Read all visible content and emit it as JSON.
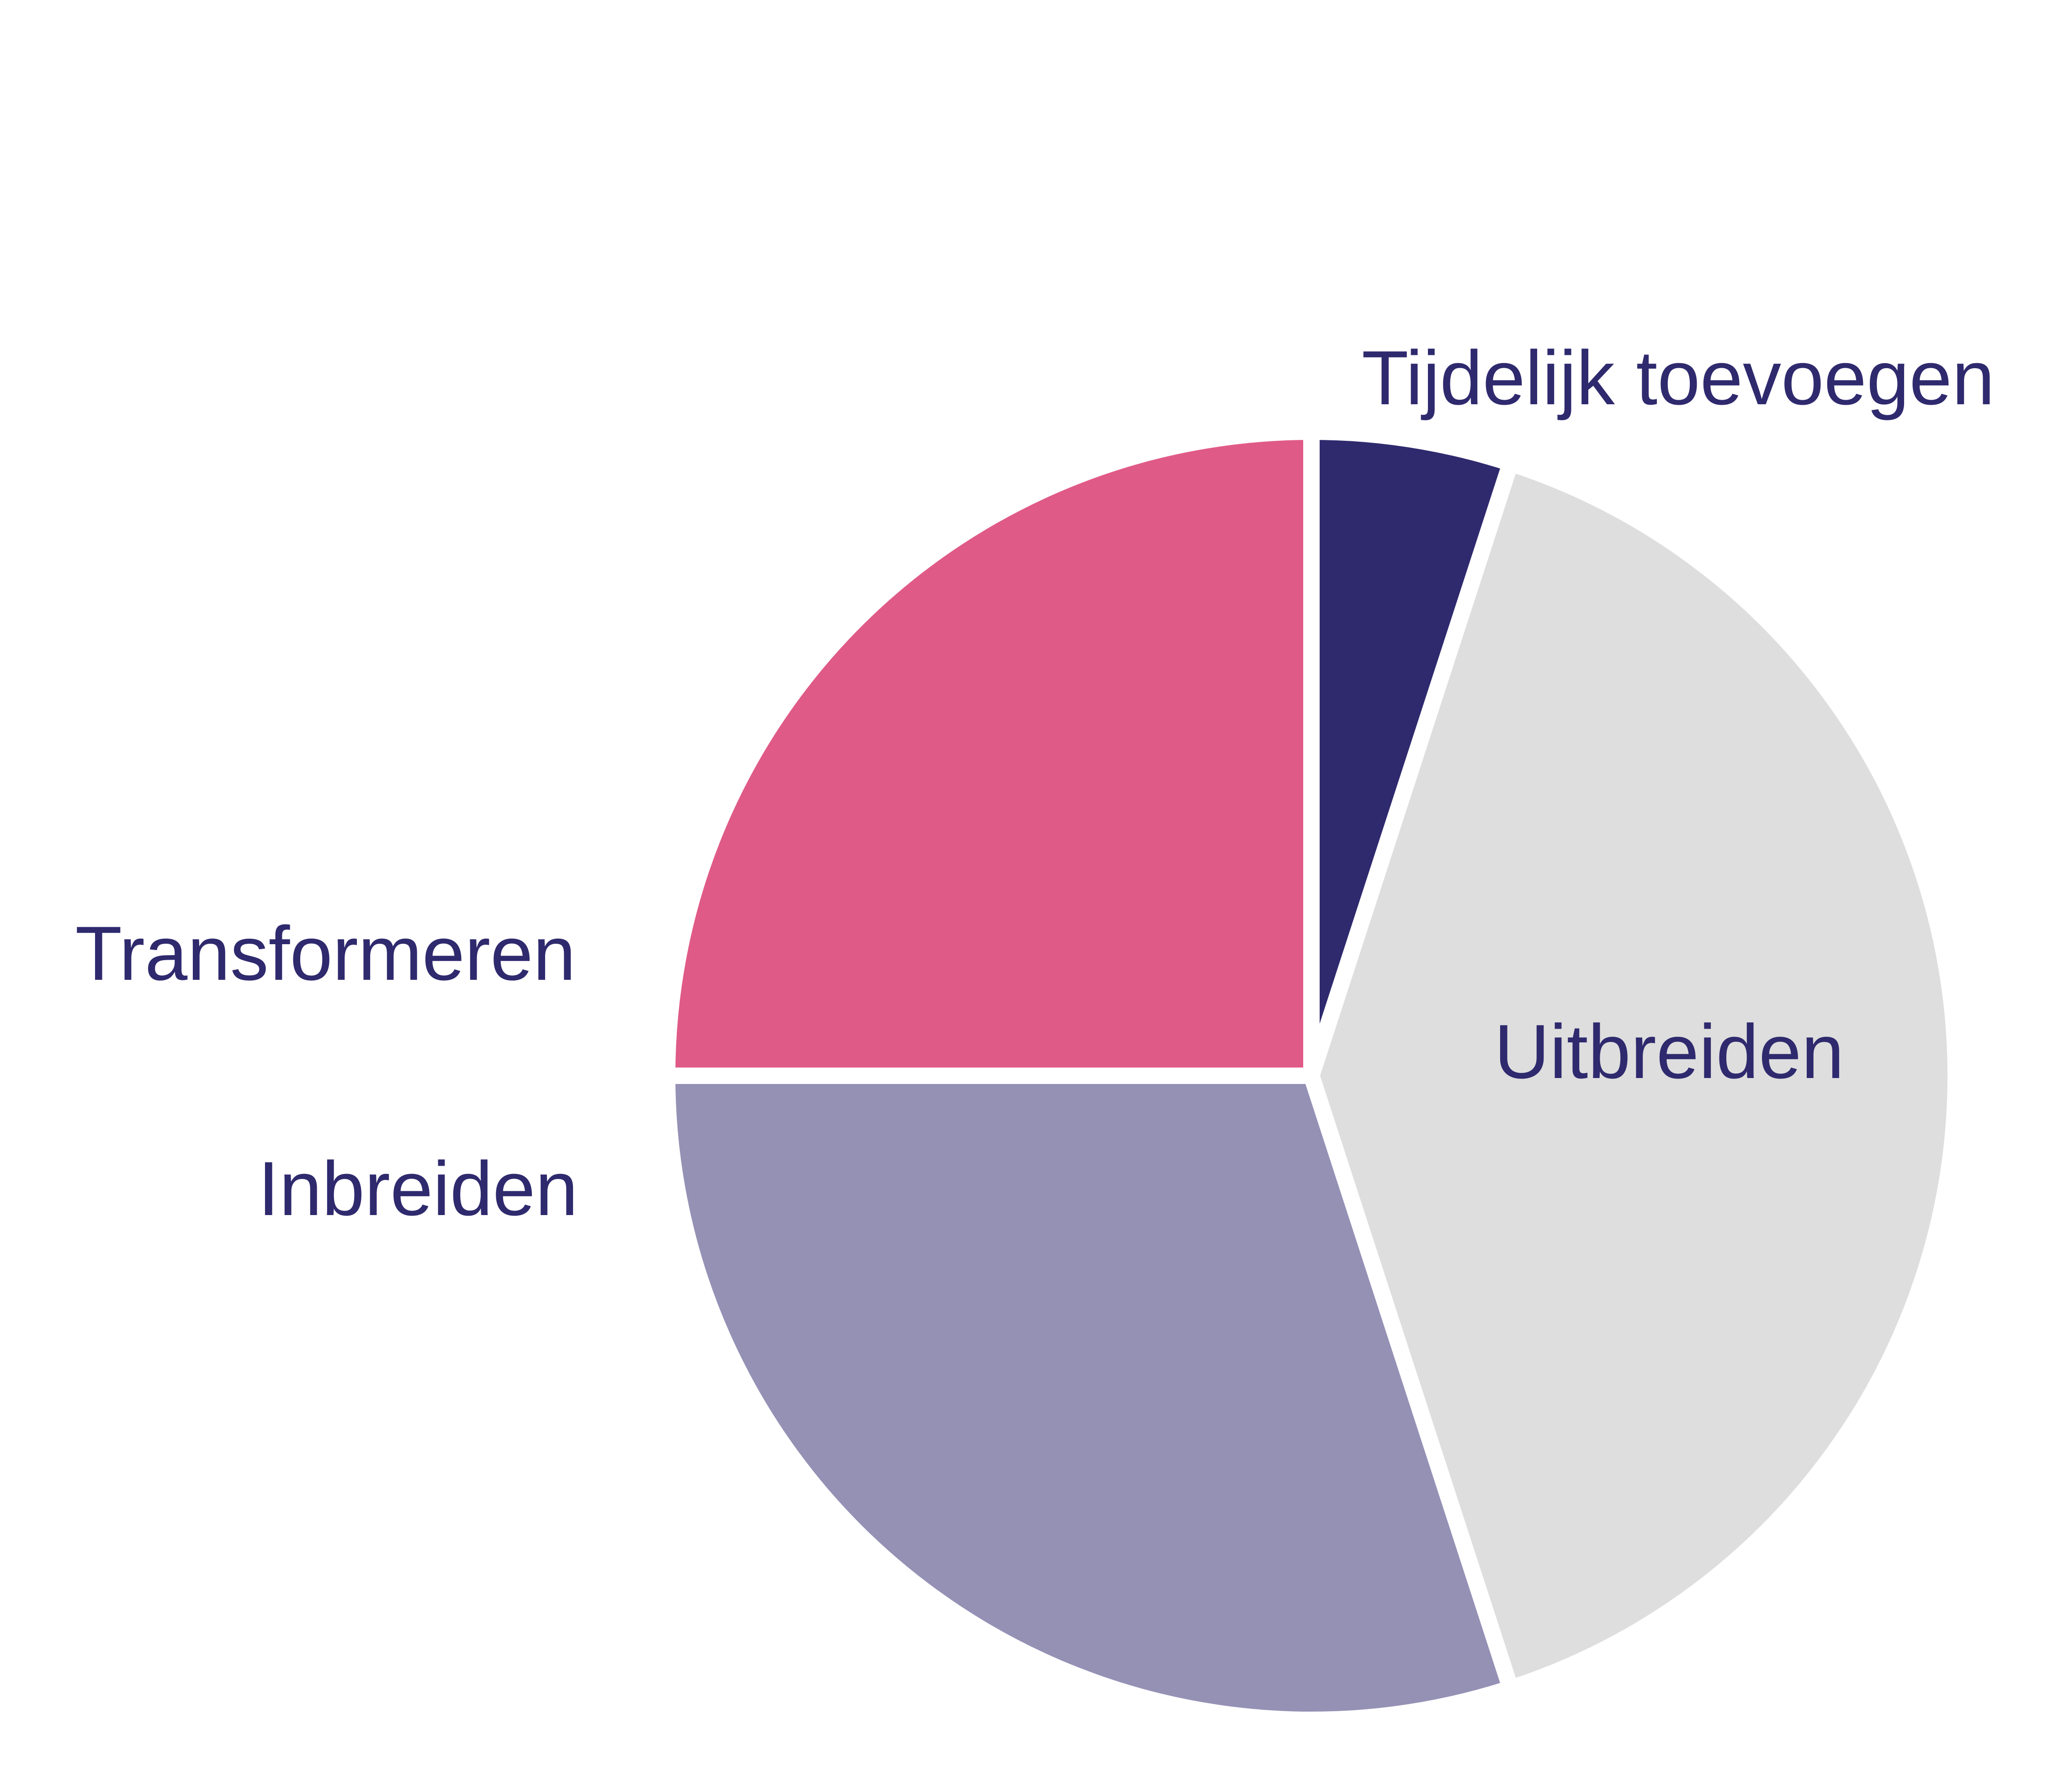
{
  "chart_data": {
    "type": "pie",
    "title": "",
    "legend": "none",
    "start_angle_deg": 0,
    "direction": "clockwise",
    "slices": [
      {
        "name": "Tijdelijk toevoegen",
        "value": 5,
        "color": "#2f2a6e"
      },
      {
        "name": "Uitbreiden",
        "value": 40,
        "color": "#dedede"
      },
      {
        "name": "Inbreiden",
        "value": 30,
        "color": "#9591b5"
      },
      {
        "name": "Transformeren",
        "value": 25,
        "color": "#e05a87"
      }
    ]
  }
}
